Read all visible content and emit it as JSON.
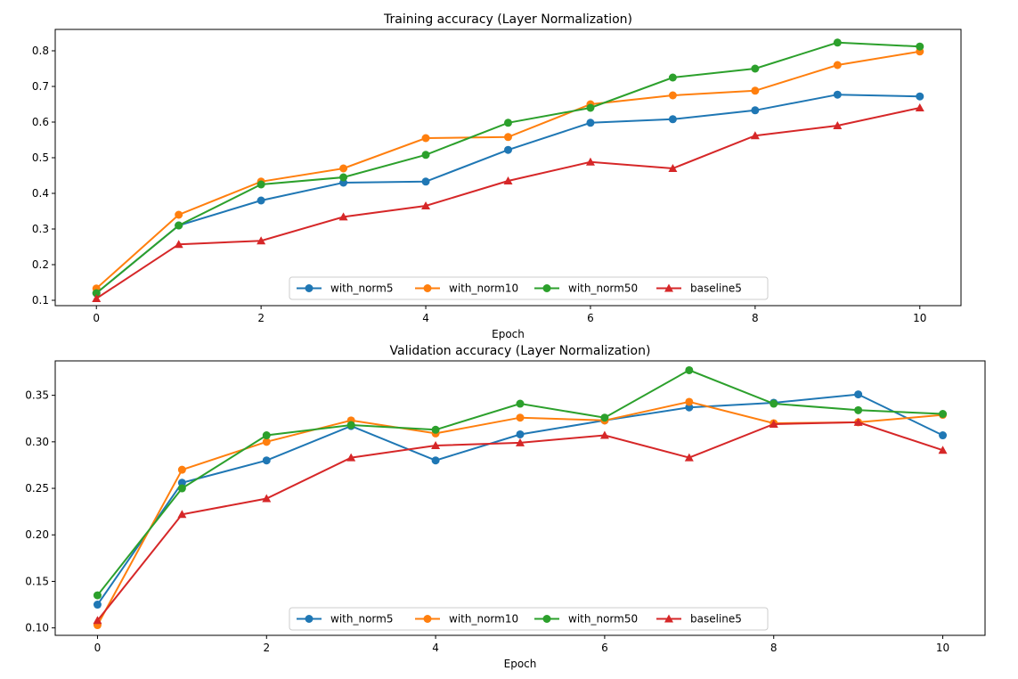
{
  "chart_data": [
    {
      "type": "line",
      "title": "Training accuracy (Layer Normalization)",
      "xlabel": "Epoch",
      "ylabel": "",
      "xlim": [
        -0.5,
        10.5
      ],
      "ylim": [
        0.085,
        0.86
      ],
      "xticks": [
        0,
        2,
        4,
        6,
        8,
        10
      ],
      "yticks": [
        0.1,
        0.2,
        0.3,
        0.4,
        0.5,
        0.6,
        0.7,
        0.8
      ],
      "ytick_labels": [
        "0.1",
        "0.2",
        "0.3",
        "0.4",
        "0.5",
        "0.6",
        "0.7",
        "0.8"
      ],
      "grid": false,
      "legend": "lower-center",
      "x": [
        0,
        1,
        2,
        3,
        4,
        5,
        6,
        7,
        8,
        9,
        10
      ],
      "series": [
        {
          "name": "with_norm5",
          "color": "#1f77b4",
          "marker": "circle",
          "values": [
            0.12,
            0.31,
            0.38,
            0.43,
            0.433,
            0.522,
            0.598,
            0.608,
            0.633,
            0.677,
            0.672
          ]
        },
        {
          "name": "with_norm10",
          "color": "#ff7f0e",
          "marker": "circle",
          "values": [
            0.133,
            0.34,
            0.433,
            0.47,
            0.555,
            0.558,
            0.65,
            0.675,
            0.688,
            0.76,
            0.798
          ]
        },
        {
          "name": "with_norm50",
          "color": "#2ca02c",
          "marker": "circle",
          "values": [
            0.12,
            0.31,
            0.425,
            0.445,
            0.508,
            0.598,
            0.64,
            0.725,
            0.75,
            0.823,
            0.812
          ]
        },
        {
          "name": "baseline5",
          "color": "#d62728",
          "marker": "triangle",
          "values": [
            0.105,
            0.257,
            0.267,
            0.334,
            0.365,
            0.435,
            0.488,
            0.47,
            0.562,
            0.59,
            0.64
          ]
        }
      ]
    },
    {
      "type": "line",
      "title": "Validation accuracy (Layer Normalization)",
      "xlabel": "Epoch",
      "ylabel": "",
      "xlim": [
        -0.5,
        10.5
      ],
      "ylim": [
        0.092,
        0.387
      ],
      "xticks": [
        0,
        2,
        4,
        6,
        8,
        10
      ],
      "yticks": [
        0.1,
        0.15,
        0.2,
        0.25,
        0.3,
        0.35
      ],
      "ytick_labels": [
        "0.10",
        "0.15",
        "0.20",
        "0.25",
        "0.30",
        "0.35"
      ],
      "grid": false,
      "legend": "lower-center",
      "x": [
        0,
        1,
        2,
        3,
        4,
        5,
        6,
        7,
        8,
        9,
        10
      ],
      "series": [
        {
          "name": "with_norm5",
          "color": "#1f77b4",
          "marker": "circle",
          "values": [
            0.125,
            0.256,
            0.28,
            0.317,
            0.28,
            0.308,
            0.323,
            0.337,
            0.342,
            0.351,
            0.307
          ]
        },
        {
          "name": "with_norm10",
          "color": "#ff7f0e",
          "marker": "circle",
          "values": [
            0.103,
            0.27,
            0.3,
            0.323,
            0.309,
            0.326,
            0.323,
            0.343,
            0.32,
            0.321,
            0.329
          ]
        },
        {
          "name": "with_norm50",
          "color": "#2ca02c",
          "marker": "circle",
          "values": [
            0.135,
            0.25,
            0.307,
            0.318,
            0.313,
            0.341,
            0.326,
            0.377,
            0.341,
            0.334,
            0.33
          ]
        },
        {
          "name": "baseline5",
          "color": "#d62728",
          "marker": "triangle",
          "values": [
            0.108,
            0.222,
            0.239,
            0.283,
            0.296,
            0.299,
            0.307,
            0.283,
            0.319,
            0.321,
            0.291
          ]
        }
      ]
    }
  ]
}
